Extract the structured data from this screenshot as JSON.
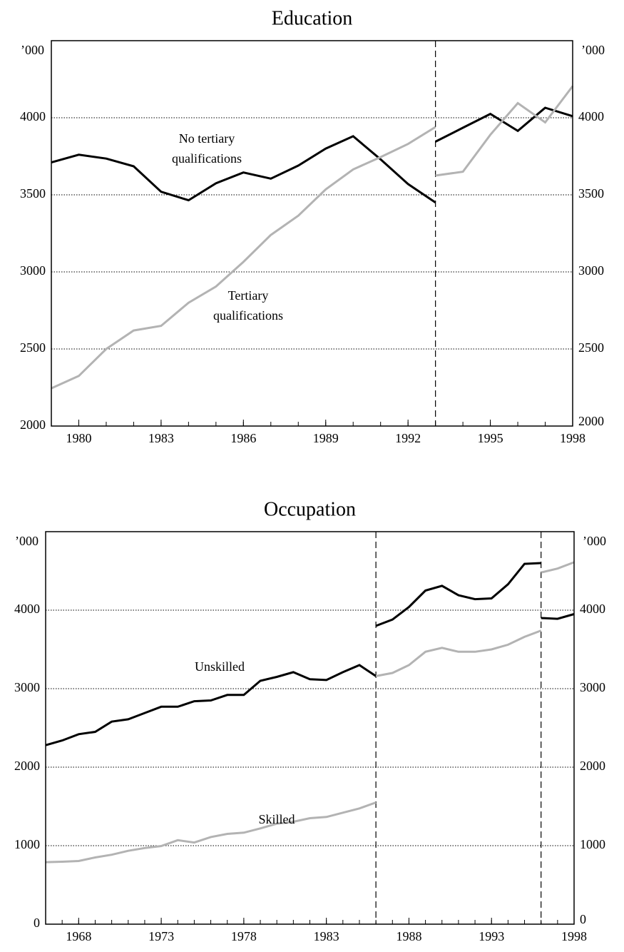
{
  "chart_data": [
    {
      "type": "line",
      "title": "Education",
      "unit": "’000",
      "mirror_y": true,
      "grid": true,
      "grid_style": "dotted",
      "x": [
        1979,
        1980,
        1981,
        1982,
        1983,
        1984,
        1985,
        1986,
        1987,
        1988,
        1989,
        1990,
        1991,
        1992,
        1993,
        1993,
        1993,
        1994,
        1995,
        1996,
        1997,
        1998
      ],
      "breaks": [
        1993
      ],
      "series": [
        {
          "label": [
            "No tertiary",
            "qualifications"
          ],
          "color": "#000000",
          "values": [
            3710,
            3760,
            3735,
            3685,
            3520,
            3465,
            3575,
            3645,
            3605,
            3690,
            3800,
            3880,
            3730,
            3570,
            3450,
            null,
            3845,
            3935,
            4025,
            3915,
            4065,
            4010
          ]
        },
        {
          "label": [
            "Tertiary",
            "qualifications"
          ],
          "color": "#b3b3b3",
          "values": [
            2245,
            2325,
            2500,
            2620,
            2650,
            2800,
            2905,
            3065,
            3240,
            3365,
            3535,
            3665,
            3745,
            3830,
            3940,
            null,
            3625,
            3650,
            3890,
            4095,
            3970,
            4205
          ]
        }
      ],
      "xlim": [
        1979,
        1998
      ],
      "xticks": [
        1980,
        1983,
        1986,
        1989,
        1992,
        1995,
        1998
      ],
      "ylim": [
        2000,
        4500
      ],
      "yticks": [
        2000,
        2500,
        3000,
        3500,
        4000
      ]
    },
    {
      "type": "line",
      "title": "Occupation",
      "unit": "’000",
      "mirror_y": true,
      "grid": true,
      "grid_style": "dotted",
      "x": [
        1966,
        1967,
        1968,
        1969,
        1970,
        1971,
        1972,
        1973,
        1974,
        1975,
        1976,
        1977,
        1978,
        1979,
        1980,
        1981,
        1982,
        1983,
        1984,
        1985,
        1986,
        1986,
        1986,
        1987,
        1988,
        1989,
        1990,
        1991,
        1992,
        1993,
        1994,
        1995,
        1996,
        1996,
        1996,
        1997,
        1998
      ],
      "breaks": [
        1986,
        1996
      ],
      "series": [
        {
          "label": [
            "Unskilled"
          ],
          "color": "#000000",
          "values": [
            2280,
            2340,
            2420,
            2450,
            2580,
            2610,
            2690,
            2770,
            2770,
            2840,
            2850,
            2920,
            2920,
            3100,
            3150,
            3210,
            3120,
            3110,
            3210,
            3300,
            3160,
            null,
            3800,
            3880,
            4040,
            4250,
            4310,
            4190,
            4140,
            4150,
            4330,
            4590,
            4600,
            null,
            3900,
            3890,
            3950
          ]
        },
        {
          "label": [
            "Skilled"
          ],
          "color": "#b3b3b3",
          "values": [
            790,
            795,
            805,
            850,
            885,
            935,
            970,
            995,
            1070,
            1040,
            1110,
            1150,
            1165,
            1220,
            1280,
            1305,
            1350,
            1365,
            1420,
            1475,
            1550,
            null,
            3160,
            3200,
            3300,
            3470,
            3520,
            3470,
            3470,
            3500,
            3560,
            3660,
            3740,
            null,
            4480,
            4530,
            4610
          ]
        }
      ],
      "xlim": [
        1966,
        1998
      ],
      "xticks": [
        1968,
        1973,
        1978,
        1983,
        1988,
        1993,
        1998
      ],
      "ylim": [
        0,
        5000
      ],
      "yticks": [
        0,
        1000,
        2000,
        3000,
        4000
      ]
    }
  ]
}
